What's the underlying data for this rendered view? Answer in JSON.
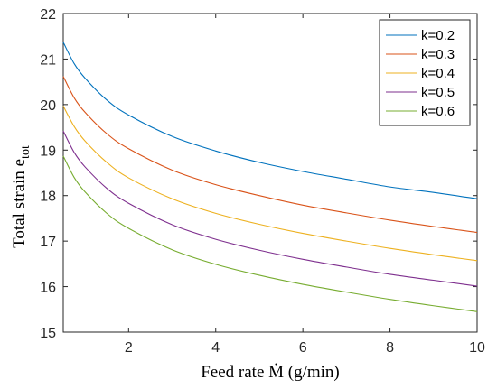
{
  "chart_data": {
    "type": "line",
    "xlabel": "Feed rate Ṁ (g/min)",
    "ylabel": "Total strain e",
    "ylabel_subscript": "tot",
    "xlim": [
      0.5,
      10
    ],
    "ylim": [
      15,
      22
    ],
    "xticks": [
      2,
      4,
      6,
      8,
      10
    ],
    "yticks": [
      15,
      16,
      17,
      18,
      19,
      20,
      21,
      22
    ],
    "grid": false,
    "legend_position": "top-right",
    "x": [
      0.5,
      0.75,
      1,
      1.5,
      2,
      3,
      4,
      5,
      6,
      7,
      8,
      9,
      10
    ],
    "series": [
      {
        "name": "k=0.2",
        "color": "#0072BD",
        "values": [
          21.37,
          20.9,
          20.58,
          20.1,
          19.77,
          19.3,
          18.98,
          18.73,
          18.53,
          18.36,
          18.19,
          18.07,
          17.93
        ]
      },
      {
        "name": "k=0.3",
        "color": "#D95319",
        "values": [
          20.62,
          20.15,
          19.83,
          19.36,
          19.03,
          18.56,
          18.24,
          18.0,
          17.79,
          17.62,
          17.46,
          17.32,
          17.19
        ]
      },
      {
        "name": "k=0.4",
        "color": "#EDB120",
        "values": [
          19.97,
          19.52,
          19.2,
          18.73,
          18.39,
          17.93,
          17.61,
          17.37,
          17.17,
          17.0,
          16.84,
          16.7,
          16.57
        ]
      },
      {
        "name": "k=0.5",
        "color": "#7E2F8E",
        "values": [
          19.42,
          18.95,
          18.63,
          18.16,
          17.83,
          17.36,
          17.04,
          16.8,
          16.6,
          16.43,
          16.27,
          16.14,
          16.01
        ]
      },
      {
        "name": "k=0.6",
        "color": "#77AC30",
        "values": [
          18.87,
          18.4,
          18.08,
          17.61,
          17.28,
          16.81,
          16.49,
          16.25,
          16.05,
          15.88,
          15.72,
          15.58,
          15.45
        ]
      }
    ]
  }
}
